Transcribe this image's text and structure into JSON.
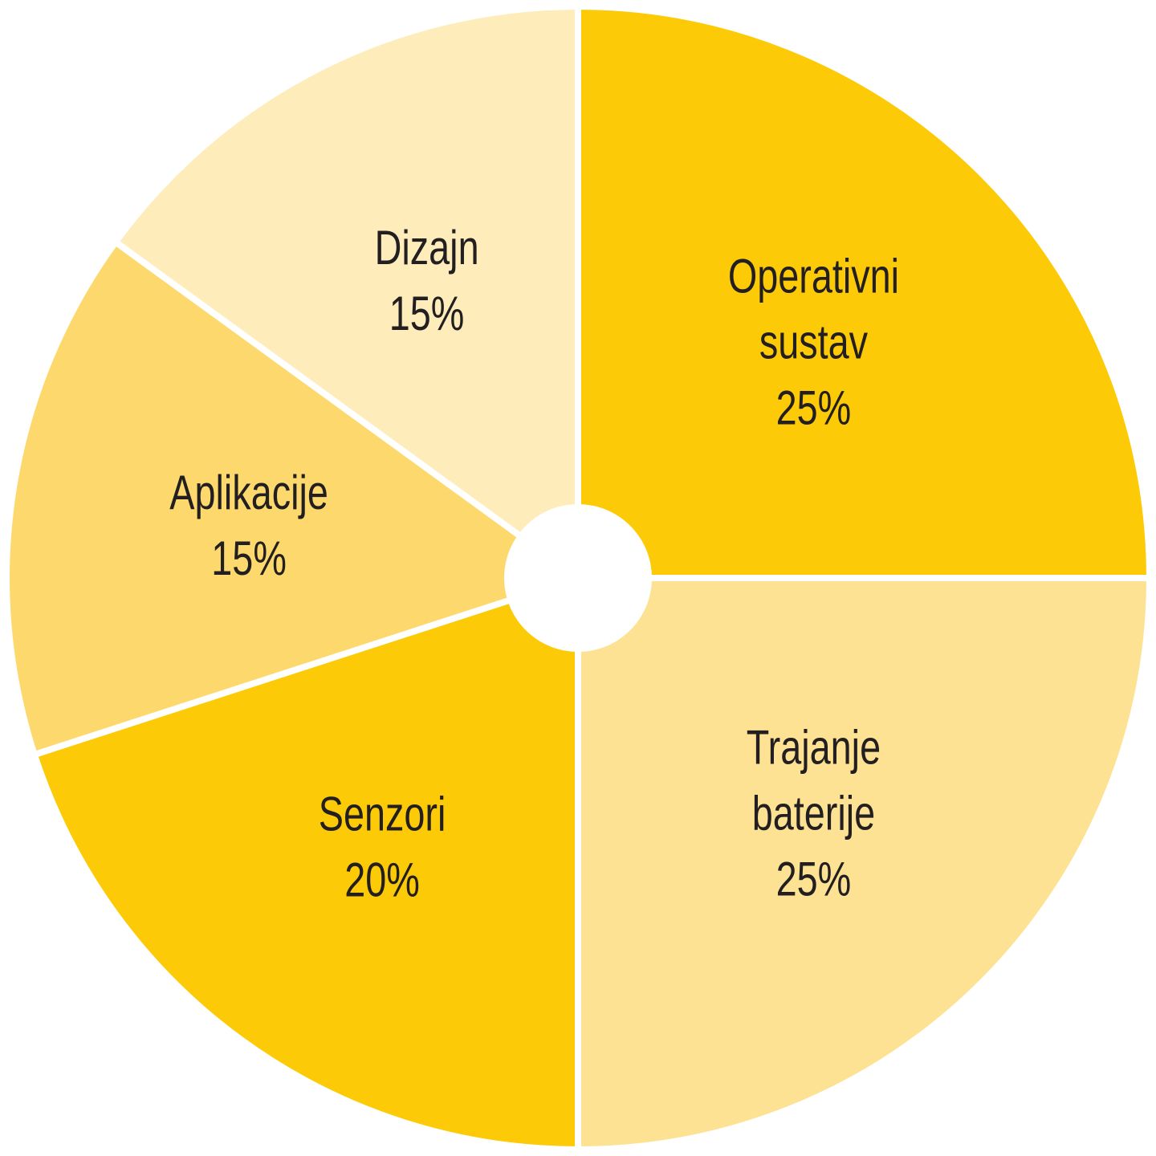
{
  "chart_data": {
    "type": "pie",
    "title": "",
    "start_angle_deg": 0,
    "direction": "clockwise",
    "center_hole": true,
    "slices": [
      {
        "label": "Operativni sustav",
        "label_lines": [
          "Operativni",
          "sustav"
        ],
        "value_text": "25%",
        "value": 25,
        "color": "#fdca08"
      },
      {
        "label": "Trajanje baterije",
        "label_lines": [
          "Trajanje",
          "baterije"
        ],
        "value_text": "25%",
        "value": 25,
        "color": "#fde293"
      },
      {
        "label": "Senzori",
        "label_lines": [
          "Senzori"
        ],
        "value_text": "20%",
        "value": 20,
        "color": "#fdca08"
      },
      {
        "label": "Aplikacije",
        "label_lines": [
          "Aplikacije"
        ],
        "value_text": "15%",
        "value": 15,
        "color": "#fdd96d"
      },
      {
        "label": "Dizajn",
        "label_lines": [
          "Dizajn"
        ],
        "value_text": "15%",
        "value": 15,
        "color": "#feedbb"
      }
    ]
  }
}
